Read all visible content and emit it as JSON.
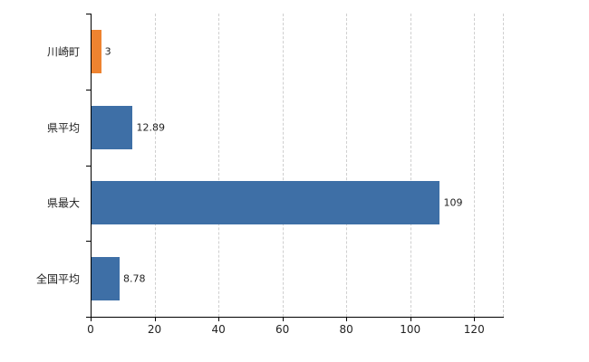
{
  "chart_data": {
    "type": "bar",
    "orientation": "horizontal",
    "categories": [
      "川崎町",
      "県平均",
      "県最大",
      "全国平均"
    ],
    "values": [
      3,
      12.89,
      109,
      8.78
    ],
    "value_labels": [
      "3",
      "12.89",
      "109",
      "8.78"
    ],
    "bar_colors": [
      "#ee8330",
      "#3e6fa6",
      "#3e6fa6",
      "#3e6fa6"
    ],
    "xlim": [
      0,
      129
    ],
    "xticks": [
      0,
      20,
      40,
      60,
      80,
      100,
      120
    ],
    "grid": "vertical-dashed",
    "legend": "none",
    "title": "",
    "xlabel": "",
    "ylabel": "",
    "colors": {
      "highlight_orange": "#ee8330",
      "series_blue": "#3e6fa6",
      "gridline": "#cfcfcf",
      "axis": "#000000",
      "text": "#222222",
      "background": "#ffffff"
    }
  }
}
